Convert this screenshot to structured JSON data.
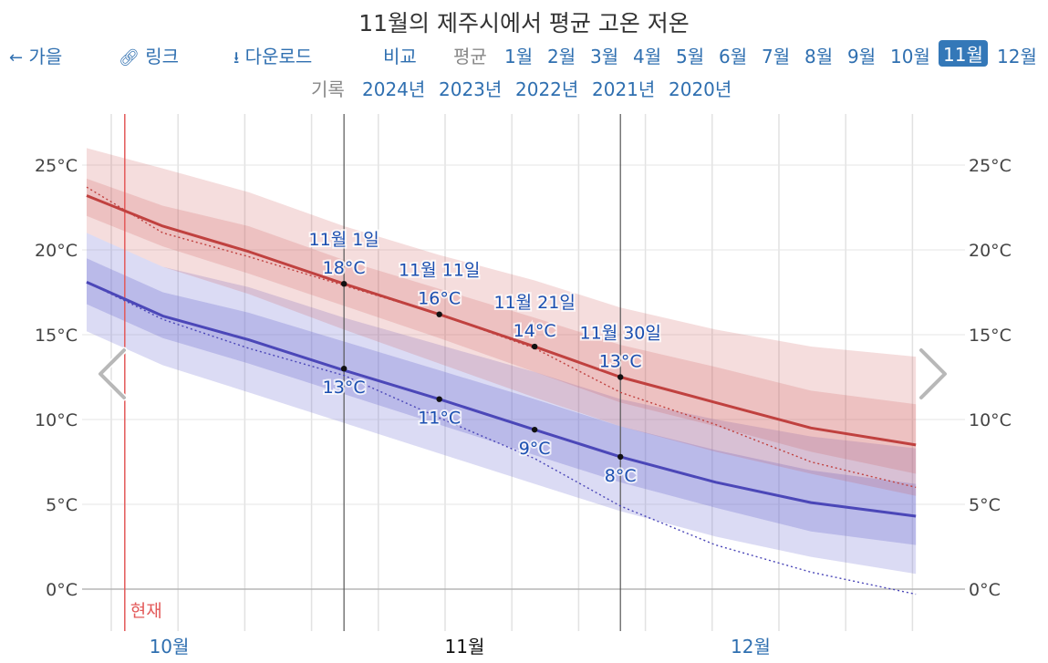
{
  "title": "11월의 제주시에서 평균 고온 저온",
  "nav": {
    "back_label": "가을",
    "link_label": "링크",
    "download_label": "다운로드",
    "compare_label": "비교",
    "average_label": "평균",
    "months": [
      "1월",
      "2월",
      "3월",
      "4월",
      "5월",
      "6월",
      "7월",
      "8월",
      "9월",
      "10월",
      "11월",
      "12월"
    ],
    "active_month": "11월"
  },
  "records": {
    "label": "기록",
    "years": [
      "2024년",
      "2023년",
      "2022년",
      "2021년",
      "2020년"
    ]
  },
  "now_label": "현재",
  "colors": {
    "high": "#c0413f",
    "low": "#4b47b8",
    "now": "#e35a5a",
    "link": "#2f6fb0"
  },
  "chart_data": {
    "type": "area",
    "title": "11월의 제주시에서 평균 고온 저온",
    "x_unit": "day",
    "month_ticks": [
      {
        "label": "10월",
        "day": "10-15"
      },
      {
        "label": "11월",
        "day": "11-15"
      },
      {
        "label": "12월",
        "day": "12-15"
      }
    ],
    "ylim": [
      -0.5,
      26
    ],
    "yticks": [
      "0°C",
      "5°C",
      "10°C",
      "15°C",
      "20°C",
      "25°C"
    ],
    "ytick_values": [
      0,
      5,
      10,
      15,
      20,
      25
    ],
    "x": [
      "10-05",
      "10-13",
      "10-22",
      "11-01",
      "11-11",
      "11-21",
      "11-30",
      "12-10",
      "12-20",
      "12-31"
    ],
    "series": [
      {
        "name": "high_avg",
        "values": [
          23.2,
          21.4,
          19.9,
          18.0,
          16.2,
          14.3,
          12.5,
          11.0,
          9.5,
          8.5
        ]
      },
      {
        "name": "high_p25_p75",
        "values": [
          [
            22.0,
            24.2
          ],
          [
            20.2,
            22.6
          ],
          [
            18.6,
            21.4
          ],
          [
            16.7,
            19.4
          ],
          [
            14.8,
            17.7
          ],
          [
            12.8,
            16.0
          ],
          [
            11.0,
            14.4
          ],
          [
            9.6,
            13.1
          ],
          [
            8.1,
            11.7
          ],
          [
            6.8,
            10.9
          ]
        ]
      },
      {
        "name": "high_p10_p90",
        "values": [
          [
            21.0,
            26.0
          ],
          [
            19.0,
            24.8
          ],
          [
            17.4,
            23.4
          ],
          [
            15.3,
            21.4
          ],
          [
            13.3,
            19.7
          ],
          [
            11.3,
            18.2
          ],
          [
            9.6,
            16.6
          ],
          [
            8.1,
            15.3
          ],
          [
            6.8,
            14.3
          ],
          [
            5.5,
            13.7
          ]
        ]
      },
      {
        "name": "low_avg",
        "values": [
          18.1,
          16.1,
          14.7,
          12.9,
          11.2,
          9.4,
          7.8,
          6.3,
          5.1,
          4.3
        ]
      },
      {
        "name": "low_p25_p75",
        "values": [
          [
            16.8,
            19.5
          ],
          [
            14.8,
            17.5
          ],
          [
            13.3,
            16.3
          ],
          [
            11.5,
            14.6
          ],
          [
            9.7,
            12.9
          ],
          [
            7.9,
            11.2
          ],
          [
            6.3,
            9.6
          ],
          [
            4.8,
            8.2
          ],
          [
            3.4,
            7.0
          ],
          [
            2.6,
            6.2
          ]
        ]
      },
      {
        "name": "low_p10_p90",
        "values": [
          [
            15.2,
            21.0
          ],
          [
            13.2,
            19.0
          ],
          [
            11.6,
            17.8
          ],
          [
            9.8,
            16.0
          ],
          [
            8.0,
            14.4
          ],
          [
            6.2,
            12.8
          ],
          [
            4.6,
            11.2
          ],
          [
            3.1,
            10.0
          ],
          [
            1.9,
            9.0
          ],
          [
            0.9,
            8.3
          ]
        ]
      },
      {
        "name": "high_year",
        "values": [
          23.7,
          21.0,
          19.6,
          17.9,
          16.2,
          14.2,
          11.6,
          9.7,
          7.5,
          6.0
        ]
      },
      {
        "name": "low_year",
        "values": [
          18.1,
          15.9,
          14.2,
          12.6,
          10.1,
          7.7,
          4.9,
          2.6,
          1.0,
          -0.3
        ]
      }
    ],
    "annotations": [
      {
        "date": "11월 1일",
        "day": "11-01",
        "high": 18,
        "low": 13,
        "high_label": "18°C",
        "low_label": "13°C"
      },
      {
        "date": "11월 11일",
        "day": "11-11",
        "high": 16.2,
        "low": 11.2,
        "high_label": "16°C",
        "low_label": "11°C"
      },
      {
        "date": "11월 21일",
        "day": "11-21",
        "high": 14.3,
        "low": 9.4,
        "high_label": "14°C",
        "low_label": "9°C"
      },
      {
        "date": "11월 30일",
        "day": "11-30",
        "high": 12.5,
        "low": 7.8,
        "high_label": "13°C",
        "low_label": "8°C"
      }
    ],
    "now_day": "10-09"
  }
}
